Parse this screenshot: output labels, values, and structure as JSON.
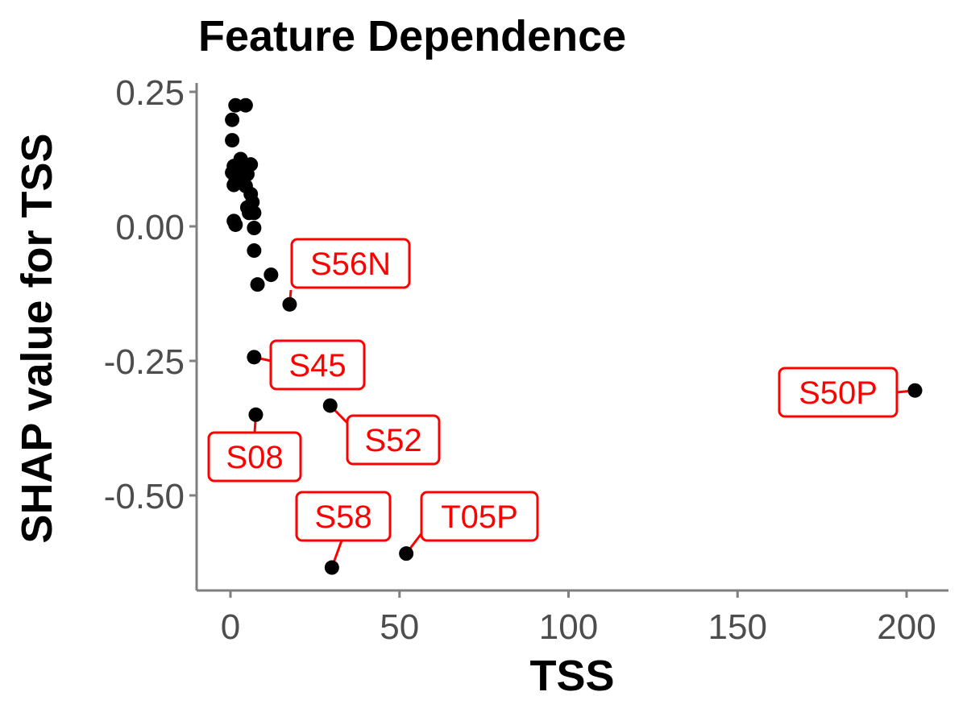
{
  "chart_data": {
    "type": "scatter",
    "title": "Feature Dependence",
    "xlabel": "TSS",
    "ylabel": "SHAP value for TSS",
    "xlim": [
      -10,
      212
    ],
    "ylim": [
      -0.68,
      0.27
    ],
    "x_ticks": [
      0,
      50,
      100,
      150,
      200
    ],
    "x_tick_labels": [
      "0",
      "50",
      "100",
      "150",
      "200"
    ],
    "y_ticks": [
      0.25,
      0.0,
      -0.25,
      -0.5
    ],
    "y_tick_labels": [
      "0.25",
      "0.00",
      "-0.25",
      "-0.50"
    ],
    "grid": false,
    "point_color": "#000000",
    "label_color": "#ff0000",
    "points": [
      {
        "x": 1.5,
        "y": 0.225
      },
      {
        "x": 4.5,
        "y": 0.225
      },
      {
        "x": 0.5,
        "y": 0.198
      },
      {
        "x": 0.5,
        "y": 0.16
      },
      {
        "x": 3,
        "y": 0.125
      },
      {
        "x": 6,
        "y": 0.115
      },
      {
        "x": 1,
        "y": 0.112
      },
      {
        "x": 2,
        "y": 0.11
      },
      {
        "x": 4,
        "y": 0.108
      },
      {
        "x": 0.5,
        "y": 0.1
      },
      {
        "x": 2.5,
        "y": 0.098
      },
      {
        "x": 5,
        "y": 0.097
      },
      {
        "x": 1.5,
        "y": 0.09
      },
      {
        "x": 3.5,
        "y": 0.088
      },
      {
        "x": 1,
        "y": 0.077
      },
      {
        "x": 4.5,
        "y": 0.075
      },
      {
        "x": 6,
        "y": 0.06
      },
      {
        "x": 6.5,
        "y": 0.045
      },
      {
        "x": 5,
        "y": 0.035
      },
      {
        "x": 5.5,
        "y": 0.025
      },
      {
        "x": 7,
        "y": 0.025
      },
      {
        "x": 1,
        "y": 0.01
      },
      {
        "x": 1.5,
        "y": 0.003
      },
      {
        "x": 7,
        "y": -0.003
      },
      {
        "x": 7,
        "y": -0.045
      },
      {
        "x": 12,
        "y": -0.09
      },
      {
        "x": 8,
        "y": -0.108
      },
      {
        "x": 17.5,
        "y": -0.145,
        "label": "S56N"
      },
      {
        "x": 7,
        "y": -0.243,
        "label": "S45"
      },
      {
        "x": 29.5,
        "y": -0.333,
        "label": "S52"
      },
      {
        "x": 7.5,
        "y": -0.35,
        "label": "S08"
      },
      {
        "x": 52,
        "y": -0.608,
        "label": "T05P"
      },
      {
        "x": 30,
        "y": -0.634,
        "label": "S58"
      },
      {
        "x": 202.5,
        "y": -0.305,
        "label": "S50P"
      }
    ]
  }
}
